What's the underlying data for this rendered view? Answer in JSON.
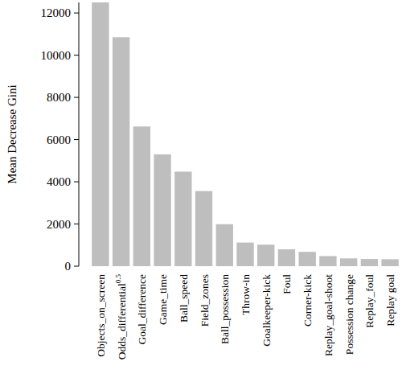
{
  "chart_data": {
    "type": "bar",
    "y_label": "Mean Decrease Gini",
    "categories": [
      "Objects_on_screen",
      "Odds_differential0.5",
      "Goal_difference",
      "Game_time",
      "Ball_speed",
      "Field_zones",
      "Ball_possession",
      "Throw-in",
      "Goalkeeper-kick",
      "Foul",
      "Corner-kick",
      "Replay_goal-shoot",
      "Possession change",
      "Replay_foul",
      "Replay goal"
    ],
    "values": [
      12500,
      10850,
      6620,
      5300,
      4480,
      3560,
      1990,
      1120,
      1020,
      800,
      680,
      480,
      370,
      340,
      330
    ],
    "color": "#bebebe",
    "ylim": [
      0,
      12500
    ],
    "yticks": [
      0,
      2000,
      4000,
      6000,
      8000,
      10000,
      12000
    ],
    "grid": false
  }
}
